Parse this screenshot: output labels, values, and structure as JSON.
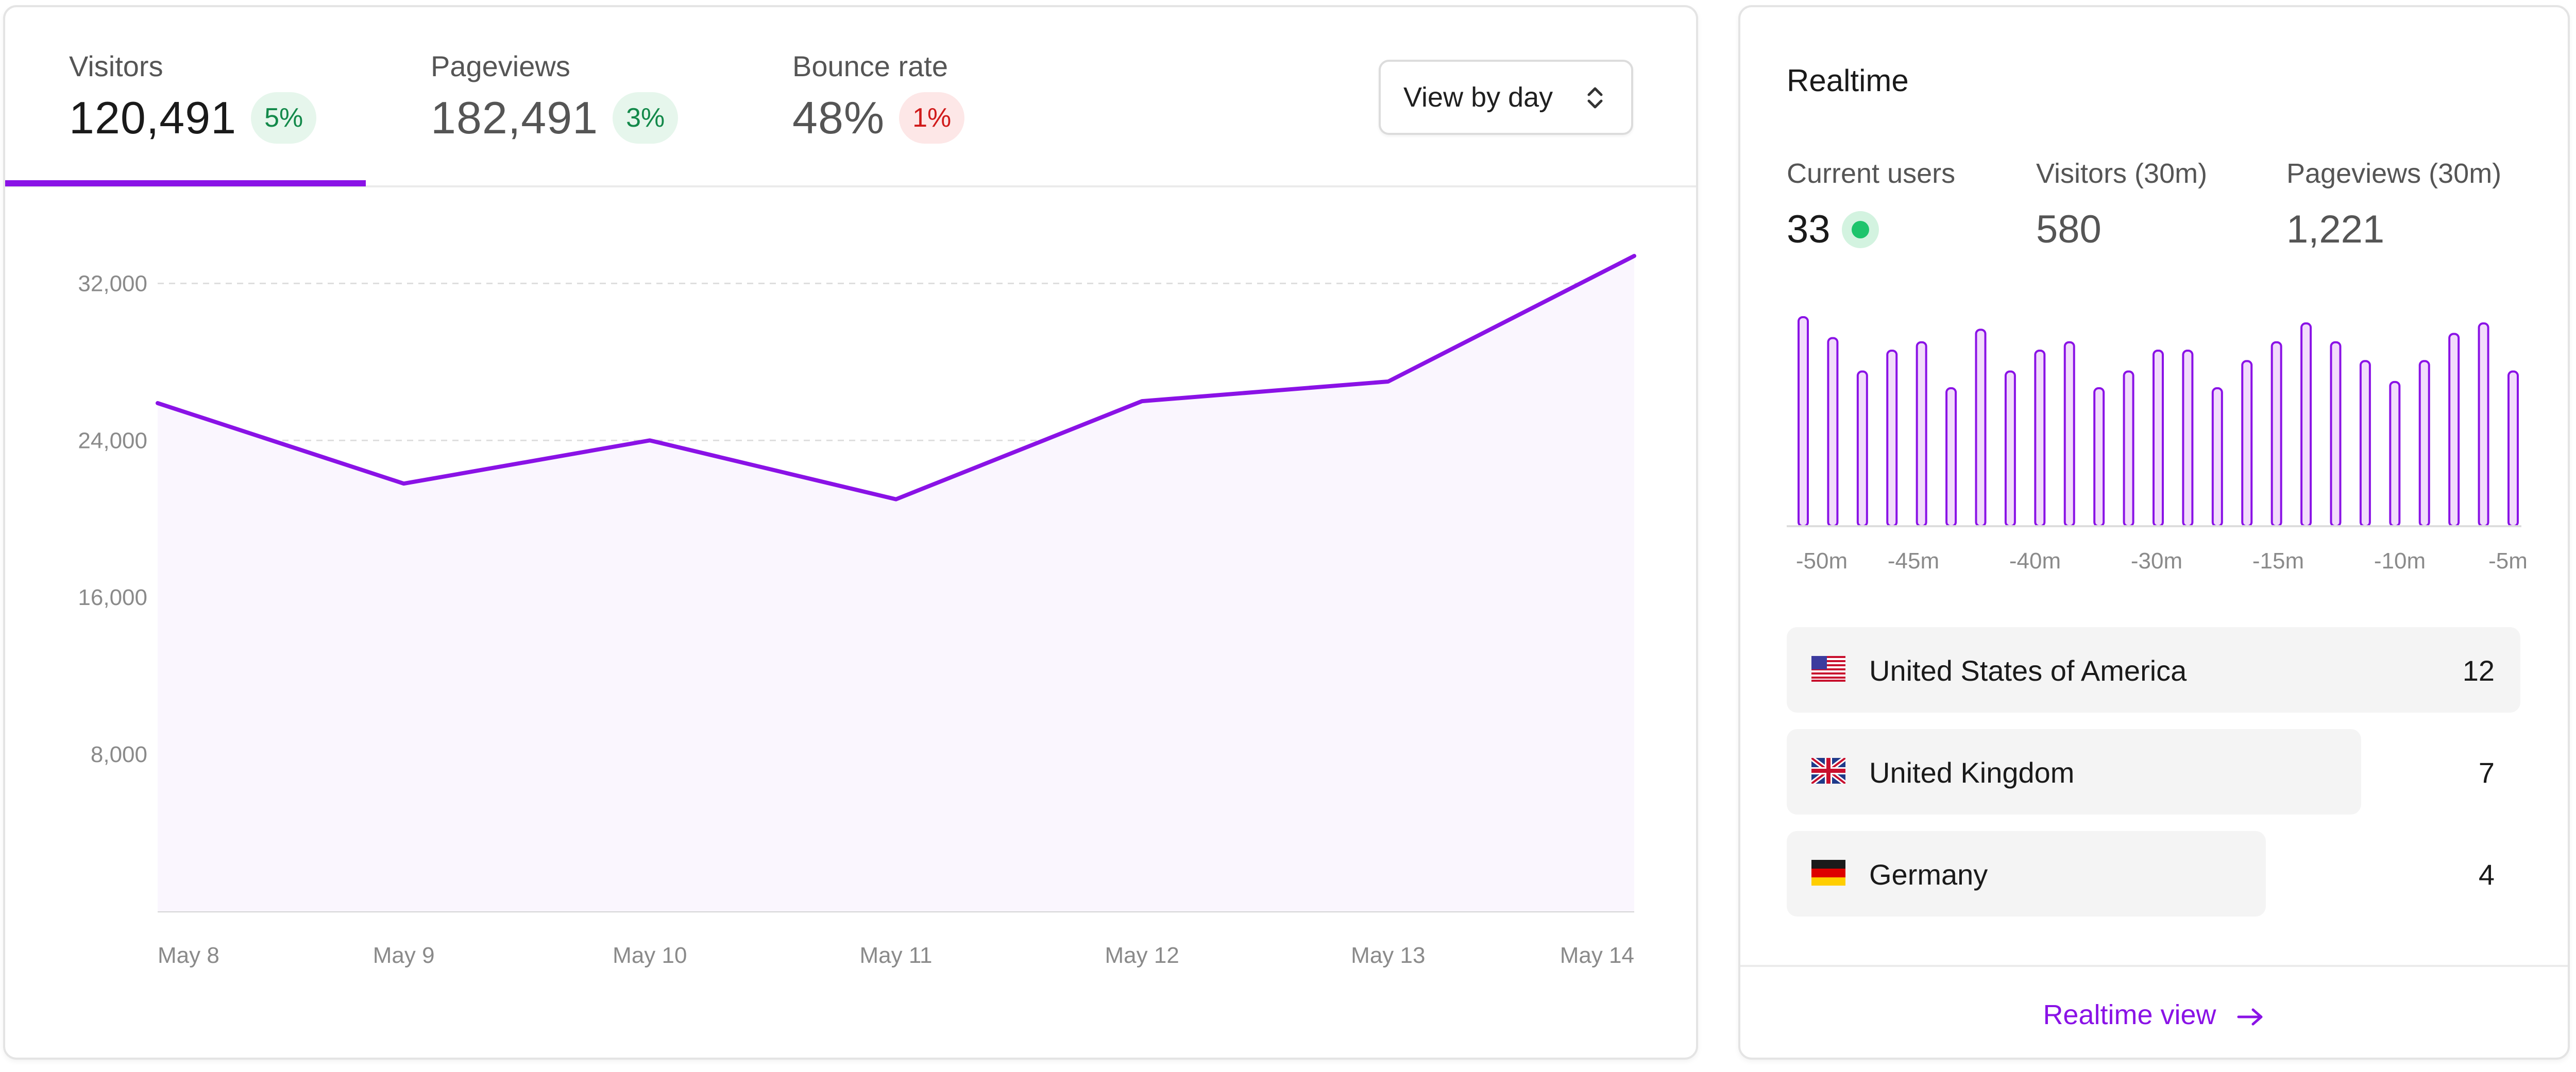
{
  "colors": {
    "accent": "#8a12e6",
    "up": "#13894a",
    "down": "#d01a1a",
    "live": "#1ec46c"
  },
  "stats": {
    "tabs": [
      {
        "label": "Visitors",
        "value": "120,491",
        "change": "5%",
        "trend": "up"
      },
      {
        "label": "Pageviews",
        "value": "182,491",
        "change": "3%",
        "trend": "up"
      },
      {
        "label": "Bounce rate",
        "value": "48%",
        "change": "1%",
        "trend": "down"
      }
    ],
    "active_tab": "Visitors",
    "view_select": {
      "label": "View by day",
      "icon": "chevrons-up-down-icon"
    }
  },
  "chart_data": {
    "type": "area",
    "x": [
      "May 8",
      "May 9",
      "May 10",
      "May 11",
      "May 12",
      "May 13",
      "May 14"
    ],
    "series": [
      {
        "values": [
          25900,
          21800,
          24000,
          21000,
          26000,
          27000,
          33400
        ]
      }
    ],
    "ylim": [
      0,
      36000
    ],
    "yticks": [
      8000,
      16000,
      24000,
      32000
    ],
    "ytick_labels": [
      "8,000",
      "16,000",
      "24,000",
      "32,000"
    ],
    "grid": true,
    "title": "",
    "xlabel": "",
    "ylabel": ""
  },
  "realtime": {
    "title": "Realtime",
    "stats": [
      {
        "label": "Current users",
        "value": "33",
        "live_icon": "live-status-dot-icon"
      },
      {
        "label": "Visitors (30m)",
        "value": "580"
      },
      {
        "label": "Pageviews (30m)",
        "value": "1,221"
      }
    ],
    "bars": [
      100,
      90,
      74,
      84,
      88,
      66,
      94,
      74,
      84,
      88,
      66,
      74,
      84,
      84,
      66,
      79,
      88,
      97,
      88,
      79,
      69,
      79,
      92,
      97,
      74
    ],
    "bars_ylim": [
      0,
      100
    ],
    "x_tick_labels": [
      "-50m",
      "-45m",
      "-40m",
      "-30m",
      "-15m",
      "-10m",
      "-5m"
    ],
    "countries": [
      {
        "name": "United States of America",
        "count": 12,
        "flag": "us-flag-icon"
      },
      {
        "name": "United Kingdom",
        "count": 7,
        "flag": "uk-flag-icon"
      },
      {
        "name": "Germany",
        "count": 4,
        "flag": "germany-flag-icon"
      }
    ],
    "link_label": "Realtime view",
    "link_icon": "arrow-right-icon"
  }
}
